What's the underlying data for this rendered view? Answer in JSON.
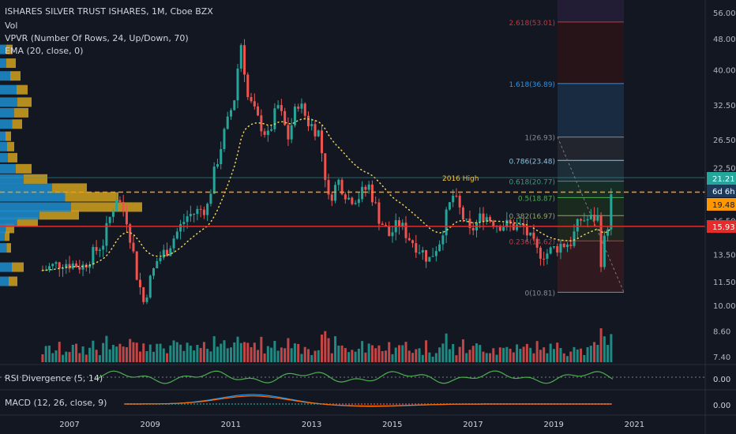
{
  "header": {
    "title": "ISHARES SILVER TRUST ISHARES, 1M, Cboe BZX",
    "indicators": [
      "Vol",
      "VPVR (Number Of Rows, 24, Up/Down, 70)",
      "EMA (20, close, 0)"
    ]
  },
  "panes": {
    "rsi_label": "RSI Divergence (5, 14)",
    "macd_label": "MACD (12, 26, close, 9)",
    "rsi_value": "0.00",
    "macd_value": "0.00"
  },
  "price_badges": {
    "current": "21.21",
    "countdown": "6d 6h",
    "level_2016": "19.48",
    "support": "15.93"
  },
  "annotations": {
    "high_2016": "2016 High"
  },
  "fib_levels": [
    {
      "label": "2.618(53.01)",
      "value": 53.01,
      "color": "#c2393f",
      "bg": "#2a1418"
    },
    {
      "label": "1.618(36.89)",
      "value": 36.89,
      "color": "#2196f3",
      "bg": "#1b2f45"
    },
    {
      "label": "1(26.93)",
      "value": 26.93,
      "color": "#888c95",
      "bg": "#26282f"
    },
    {
      "label": "0.786(23.48)",
      "value": 23.48,
      "color": "#82c8e6",
      "bg": "#20333c"
    },
    {
      "label": "0.618(20.77)",
      "value": 20.77,
      "color": "#3d9a7e",
      "bg": "#173028"
    },
    {
      "label": "0.5(18.87)",
      "value": 18.87,
      "color": "#4caf50",
      "bg": "#1c2e1e"
    },
    {
      "label": "0.382(16.97)",
      "value": 16.97,
      "color": "#8fa56c",
      "bg": "#22291c"
    },
    {
      "label": "0.236(14.62)",
      "value": 14.62,
      "color": "#c2393f",
      "bg": "#361a1f"
    },
    {
      "label": "0(10.81)",
      "value": 10.81,
      "color": "#888c95",
      "bg": ""
    }
  ],
  "colors": {
    "up": "#26a69a",
    "down": "#ef5350",
    "support_line": "#e62b2b",
    "dashed_line": "#ff9800",
    "ema": "#f0d35a",
    "background": "#131722"
  },
  "chart_data": {
    "type": "candlestick",
    "title": "ISHARES SILVER TRUST ISHARES, 1M, Cboe BZX",
    "x_ticks": [
      "2007",
      "2009",
      "2011",
      "2013",
      "2015",
      "2017",
      "2019",
      "2021"
    ],
    "y_ticks": [
      "56.00",
      "48.00",
      "40.00",
      "32.50",
      "26.50",
      "22.50",
      "16.50",
      "13.50",
      "11.50",
      "10.00",
      "8.60",
      "7.40"
    ],
    "y_scale": "log",
    "ylim": [
      6.9,
      60
    ],
    "series": [
      {
        "name": "close",
        "x": [
          "2006-05",
          "2006-11",
          "2007-05",
          "2007-11",
          "2008-03",
          "2008-06",
          "2008-09",
          "2008-11",
          "2009-03",
          "2009-06",
          "2009-12",
          "2010-06",
          "2010-12",
          "2011-02",
          "2011-04",
          "2011-06",
          "2011-09",
          "2011-12",
          "2012-03",
          "2012-06",
          "2012-09",
          "2012-12",
          "2013-03",
          "2013-06",
          "2013-09",
          "2013-12",
          "2014-03",
          "2014-06",
          "2014-09",
          "2014-12",
          "2015-03",
          "2015-06",
          "2015-09",
          "2015-12",
          "2016-03",
          "2016-07",
          "2016-10",
          "2016-12",
          "2017-04",
          "2017-08",
          "2017-12",
          "2018-04",
          "2018-08",
          "2018-11",
          "2019-03",
          "2019-06",
          "2019-09",
          "2019-12",
          "2020-02",
          "2020-03",
          "2020-05",
          "2020-07"
        ],
        "values": [
          12.3,
          12.9,
          12.6,
          14.5,
          19.0,
          16.7,
          12.0,
          10.2,
          13.0,
          13.9,
          16.9,
          17.9,
          29.3,
          33.8,
          46.8,
          34.0,
          29.8,
          26.9,
          32.4,
          26.8,
          33.2,
          29.4,
          27.8,
          18.6,
          20.8,
          18.8,
          19.0,
          20.2,
          16.8,
          15.1,
          16.2,
          14.9,
          14.0,
          13.1,
          14.6,
          19.1,
          16.8,
          15.3,
          17.1,
          16.2,
          16.0,
          15.8,
          13.7,
          13.6,
          14.3,
          14.5,
          16.6,
          16.6,
          17.0,
          13.0,
          16.0,
          21.2
        ]
      }
    ],
    "volume_pane": true,
    "rsi_pane": "RSI Divergence (5, 14)",
    "macd_pane": "MACD (12, 26, close, 9)",
    "horizontal_lines": [
      15.93,
      19.48,
      21.21
    ],
    "annotations": [
      "2016 High"
    ]
  }
}
